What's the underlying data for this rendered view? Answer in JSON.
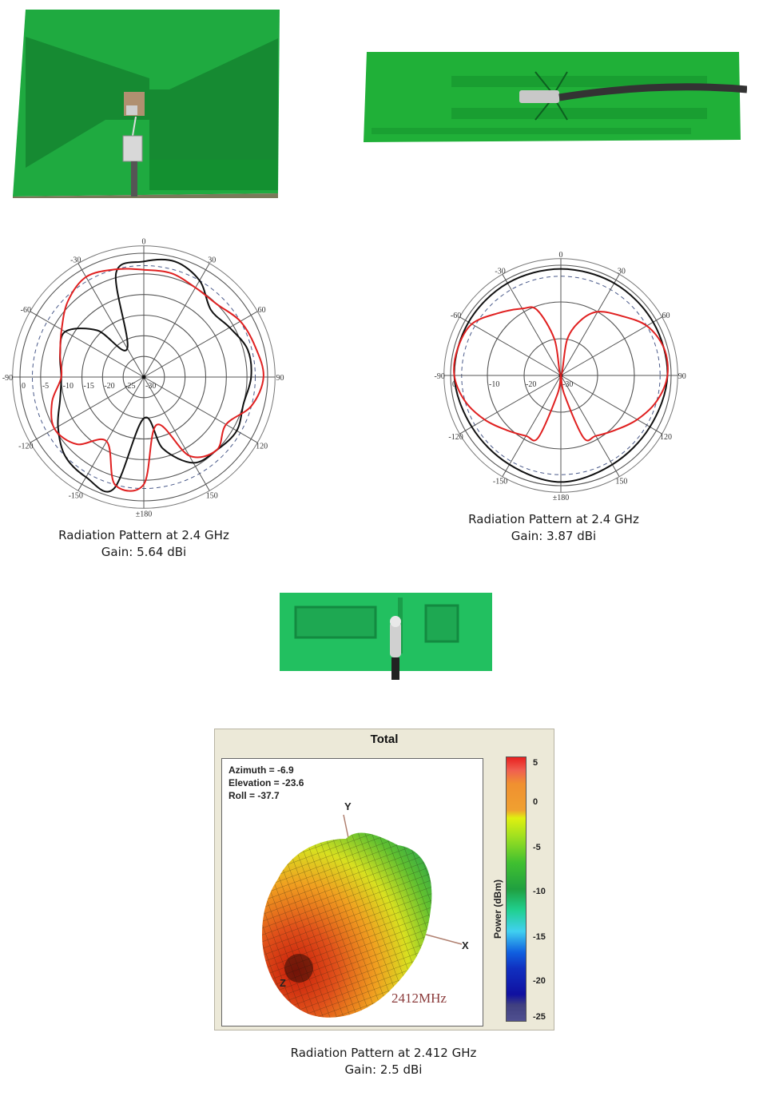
{
  "photos": [
    {
      "name": "bowtie-pcb-antenna",
      "description": "Green PCB bowtie antenna with coax feed"
    },
    {
      "name": "dipole-strip-pcb-antenna",
      "description": "Elongated green PCB dipole with black coax cable"
    },
    {
      "name": "meander-pcb-antenna",
      "description": "Small green PCB antenna with folded arms and coax feed"
    }
  ],
  "captions": {
    "left": {
      "line1": "Radiation Pattern at 2.4 GHz",
      "line2": "Gain: 5.64 dBi"
    },
    "right": {
      "line1": "Radiation Pattern at 2.4 GHz",
      "line2": "Gain: 3.87 dBi"
    },
    "bottom": {
      "line1": "Radiation Pattern at 2.412 GHz",
      "line2": "Gain: 2.5 dBi"
    }
  },
  "plot3d": {
    "title": "Total",
    "azimuth": "Azimuth = -6.9",
    "elevation": "Elevation = -23.6",
    "roll": "Roll = -37.7",
    "axis_x": "X",
    "axis_y": "Y",
    "axis_z": "Z",
    "frequency": "2412MHz",
    "colorbar_label": "Power  (dBm)",
    "colorbar_ticks": [
      "5",
      "0",
      "-5",
      "-10",
      "-15",
      "-20",
      "-25"
    ]
  },
  "chart_data": [
    {
      "type": "polar",
      "title": "Radiation Pattern at 2.4 GHz",
      "subtitle": "Gain: 5.64 dBi",
      "angle_ticks": [
        "0",
        "30",
        "60",
        "90",
        "120",
        "150",
        "±180",
        "-150",
        "-120",
        "-90",
        "-60",
        "-30"
      ],
      "radial_ticks": [
        "0",
        "-5",
        "-10",
        "-15",
        "-20",
        "-25",
        "-30"
      ],
      "radial_range_db": [
        -30,
        0
      ],
      "reference_circle_db": -3,
      "series": [
        {
          "name": "black",
          "color": "#111111",
          "angles": [
            0,
            15,
            30,
            45,
            60,
            75,
            90,
            105,
            120,
            135,
            150,
            165,
            180,
            -165,
            -150,
            -135,
            -120,
            -105,
            -90,
            -75,
            -60,
            -45,
            -30,
            -15
          ],
          "values_db": [
            -2,
            -1,
            -3,
            -7,
            -6,
            -4,
            -4,
            -5,
            -4,
            -5,
            -6,
            -12,
            -20,
            -2,
            -2,
            -3,
            -6,
            -9,
            -10,
            -9,
            -8,
            -14,
            -22,
            -4
          ]
        },
        {
          "name": "red",
          "color": "#e02020",
          "angles": [
            0,
            15,
            30,
            45,
            60,
            75,
            90,
            105,
            120,
            135,
            150,
            165,
            180,
            -165,
            -150,
            -135,
            -120,
            -105,
            -90,
            -75,
            -60,
            -45,
            -30,
            -15
          ],
          "values_db": [
            -4,
            -4,
            -5,
            -5,
            -3,
            -2,
            -1,
            -3,
            -7,
            -5,
            -8,
            -18,
            -4,
            -3,
            -12,
            -7,
            -5,
            -7,
            -10,
            -9,
            -7,
            -4,
            -2,
            -3
          ]
        }
      ]
    },
    {
      "type": "polar",
      "title": "Radiation Pattern at 2.4 GHz",
      "subtitle": "Gain: 3.87 dBi",
      "angle_ticks": [
        "0",
        "30",
        "60",
        "90",
        "120",
        "150",
        "±180",
        "-150",
        "-120",
        "-90",
        "-60",
        "-30"
      ],
      "radial_ticks": [
        "0",
        "-10",
        "-20",
        "-30"
      ],
      "radial_range_db": [
        -30,
        0
      ],
      "reference_circle_db": -3,
      "series": [
        {
          "name": "black",
          "color": "#111111",
          "angles": [
            0,
            30,
            60,
            90,
            120,
            150,
            180,
            -150,
            -120,
            -90,
            -60,
            -30
          ],
          "values_db": [
            -1,
            -1,
            -1,
            -1,
            -2,
            -2,
            -1,
            -2,
            -2,
            -1,
            -1,
            -1
          ]
        },
        {
          "name": "red",
          "color": "#e02020",
          "angles": [
            0,
            10,
            20,
            30,
            45,
            60,
            75,
            90,
            105,
            120,
            135,
            150,
            160,
            170,
            180,
            -170,
            -160,
            -150,
            -135,
            -120,
            -105,
            -90,
            -75,
            -60,
            -45,
            -30,
            -20,
            -10
          ],
          "values_db": [
            -30,
            -20,
            -14,
            -10,
            -7,
            -3,
            -1,
            -1,
            -3,
            -6,
            -9,
            -11,
            -12,
            -25,
            -30,
            -25,
            -12,
            -11,
            -9,
            -6,
            -3,
            -1,
            -1,
            -2,
            -6,
            -9,
            -11,
            -20
          ]
        }
      ]
    },
    {
      "type": "heatmap",
      "title": "Total",
      "subtitle": "3D radiation pattern, 2412MHz",
      "colorbar": {
        "label": "Power (dBm)",
        "min": -25,
        "max": 5,
        "ticks": [
          5,
          0,
          -5,
          -10,
          -15,
          -20,
          -25
        ]
      },
      "view": {
        "azimuth": -6.9,
        "elevation": -23.6,
        "roll": -37.7
      }
    }
  ]
}
